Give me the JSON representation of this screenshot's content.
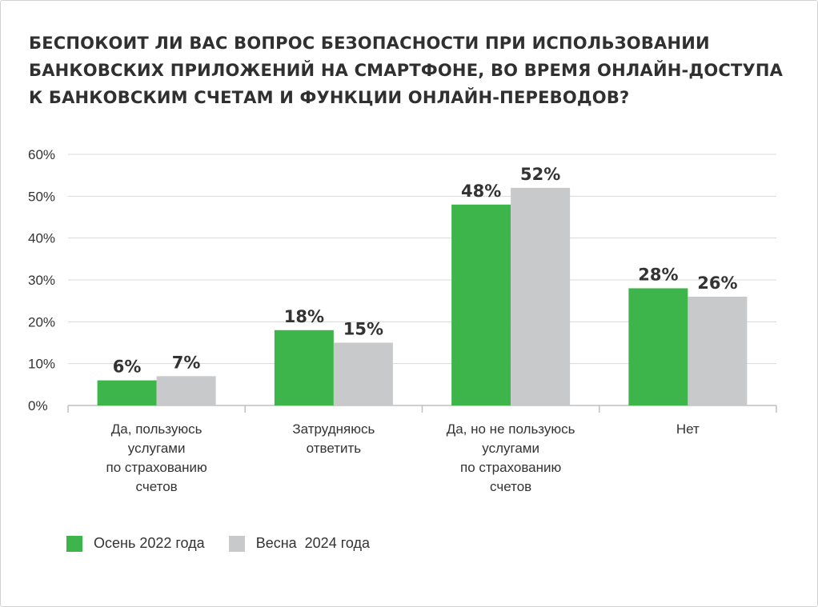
{
  "chart_data": {
    "type": "bar",
    "title_lines": [
      "БЕСПОКОИТ ЛИ ВАС ВОПРОС БЕЗОПАСНОСТИ ПРИ ИСПОЛЬЗОВАНИИ",
      "БАНКОВСКИХ ПРИЛОЖЕНИЙ НА СМАРТФОНЕ, ВО ВРЕМЯ ОНЛАЙН-ДОСТУПА",
      "К БАНКОВСКИМ СЧЕТАМ И ФУНКЦИИ ОНЛАЙН-ПЕРЕВОДОВ?"
    ],
    "categories": [
      [
        "Да, пользуюсь",
        "услугами",
        "по страхованию",
        "счетов"
      ],
      [
        "Затрудняюсь",
        "ответить"
      ],
      [
        "Да, но не пользуюсь",
        "услугами",
        "по страхованию",
        "счетов"
      ],
      [
        "Нет"
      ]
    ],
    "series": [
      {
        "name": "Осень 2022 года",
        "color": "#3db54a",
        "values": [
          6,
          18,
          48,
          28
        ],
        "labels": [
          "6%",
          "18%",
          "48%",
          "28%"
        ]
      },
      {
        "name": "Весна  2024 года",
        "color": "#c8c9ca",
        "values": [
          7,
          15,
          52,
          26
        ],
        "labels": [
          "7%",
          "15%",
          "52%",
          "26%"
        ]
      }
    ],
    "ylim": [
      0,
      60
    ],
    "yticks": [
      0,
      10,
      20,
      30,
      40,
      50,
      60
    ],
    "ytick_labels": [
      "0%",
      "10%",
      "20%",
      "30%",
      "40%",
      "50%",
      "60%"
    ],
    "grid": true,
    "legend_position": "bottom-left",
    "xlabel": "",
    "ylabel": ""
  }
}
